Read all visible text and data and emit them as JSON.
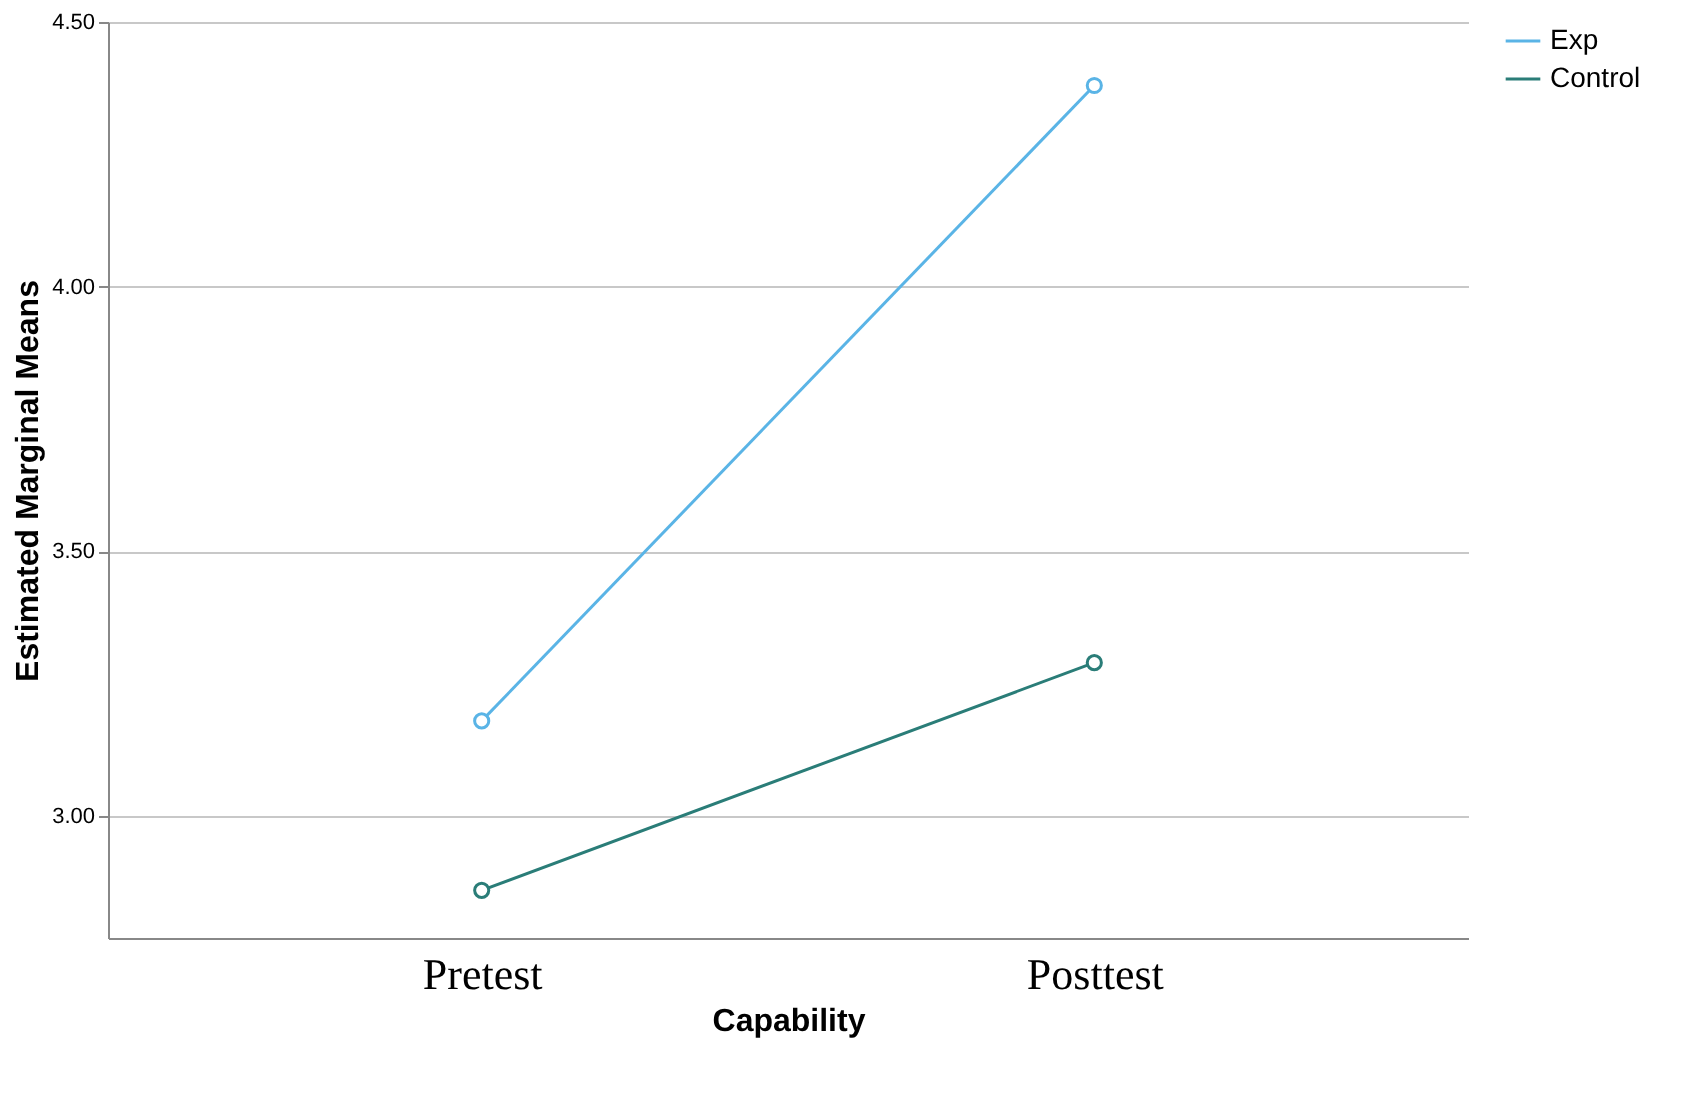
{
  "chart_data": {
    "type": "line",
    "xlabel": "Capability",
    "ylabel": "Estimated Marginal Means",
    "categories": [
      "Pretest",
      "Posttest"
    ],
    "series": [
      {
        "name": "Exp",
        "color": "#5ab4e6",
        "values": [
          3.18,
          4.38
        ]
      },
      {
        "name": "Control",
        "color": "#2a7d78",
        "values": [
          2.86,
          3.29
        ]
      }
    ],
    "ylim": [
      2.77,
      4.5
    ],
    "yticks": [
      {
        "value": 3.0,
        "label": "3.00"
      },
      {
        "value": 3.5,
        "label": "3.50"
      },
      {
        "value": 4.0,
        "label": "4.00"
      },
      {
        "value": 4.5,
        "label": "4.50"
      }
    ],
    "grid": "y",
    "legend": "top right",
    "marker": "circle",
    "line_style": "solid"
  }
}
